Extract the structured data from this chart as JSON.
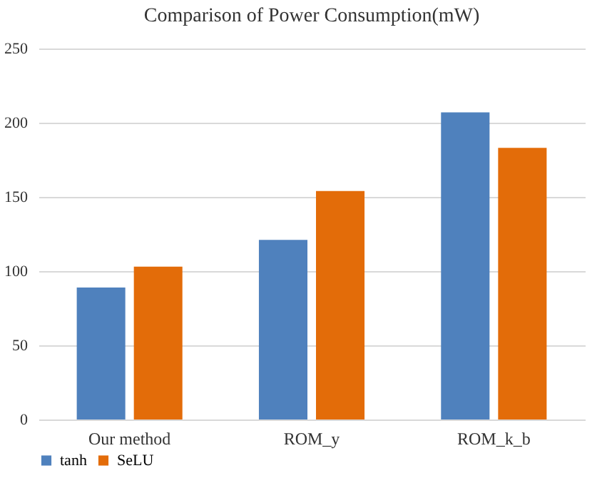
{
  "chart_data": {
    "type": "bar",
    "title": "Comparison of Power Consumption(mW)",
    "categories": [
      "Our method",
      "ROM_y",
      "ROM_k_b"
    ],
    "series": [
      {
        "name": "tanh",
        "color": "#4f81bd",
        "values": [
          89,
          121,
          207
        ]
      },
      {
        "name": "SeLU",
        "color": "#e36c09",
        "values": [
          103,
          154,
          183
        ]
      }
    ],
    "ylim": [
      0,
      250
    ],
    "yticks": [
      0,
      50,
      100,
      150,
      200,
      250
    ],
    "grid": "y",
    "legend": "bottom"
  }
}
